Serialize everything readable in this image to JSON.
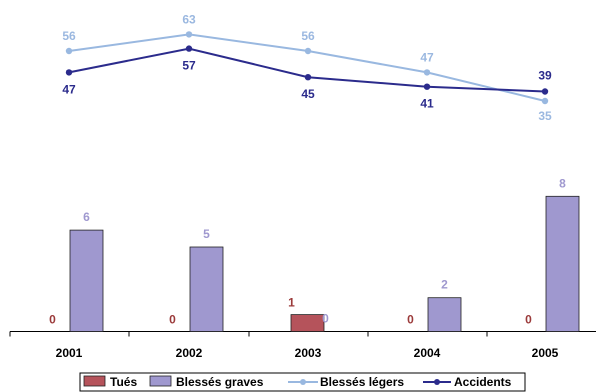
{
  "chart_data": [
    {
      "type": "line",
      "categories": [
        "2001",
        "2002",
        "2003",
        "2004",
        "2005"
      ],
      "series": [
        {
          "name": "Blessés légers",
          "values": [
            56,
            63,
            56,
            47,
            35
          ],
          "color": "#99b8e0"
        },
        {
          "name": "Accidents",
          "values": [
            47,
            57,
            45,
            41,
            39
          ],
          "color": "#2b2b8c"
        }
      ]
    },
    {
      "type": "bar",
      "categories": [
        "2001",
        "2002",
        "2003",
        "2004",
        "2005"
      ],
      "series": [
        {
          "name": "Tués",
          "values": [
            0,
            0,
            1,
            0,
            0
          ],
          "color": "#b5535b",
          "label_color": "#9b3a3a"
        },
        {
          "name": "Blessés graves",
          "values": [
            6,
            5,
            0,
            2,
            8
          ],
          "color": "#9f98cf",
          "label_color": "#9f98cf"
        }
      ],
      "ylim": [
        0,
        8
      ]
    }
  ],
  "legend": [
    "Tués",
    "Blessés graves",
    "Blessés légers",
    "Accidents"
  ]
}
